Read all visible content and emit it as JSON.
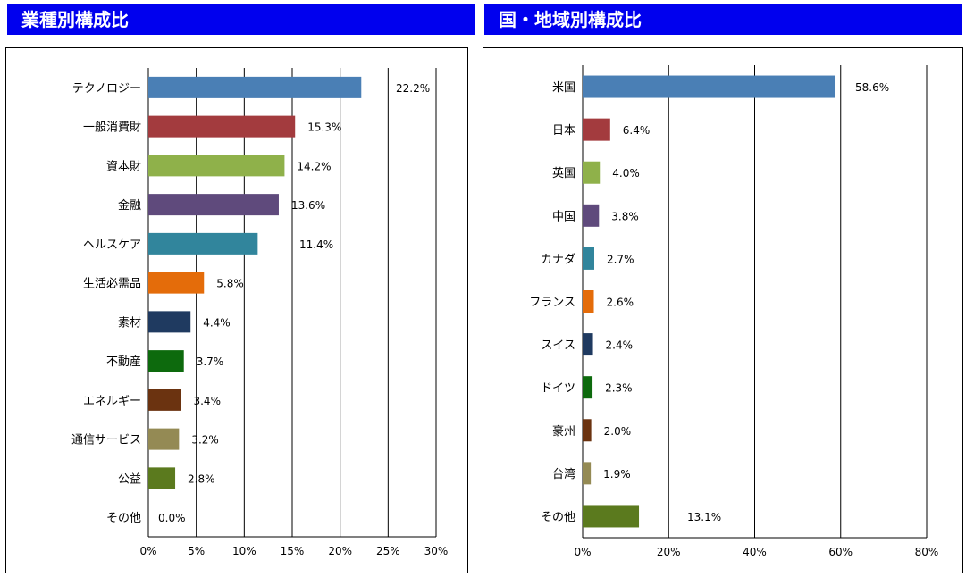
{
  "colors": {
    "header_bg": "#0000ee",
    "header_text": "#ffffff"
  },
  "chart_data": [
    {
      "type": "bar",
      "title": "業種別構成比",
      "orientation": "horizontal",
      "categories": [
        "テクノロジー",
        "一般消費財",
        "資本財",
        "金融",
        "ヘルスケア",
        "生活必需品",
        "素材",
        "不動産",
        "エネルギー",
        "通信サービス",
        "公益",
        "その他"
      ],
      "values": [
        22.2,
        15.3,
        14.2,
        13.6,
        11.4,
        5.8,
        4.4,
        3.7,
        3.4,
        3.2,
        2.8,
        0.0
      ],
      "value_labels": [
        "22.2%",
        "15.3%",
        "14.2%",
        "13.6%",
        "11.4%",
        "5.8%",
        "4.4%",
        "3.7%",
        "3.4%",
        "3.2%",
        "2.8%",
        "0.0%"
      ],
      "bar_colors": [
        "#4a7fb5",
        "#a33b3e",
        "#8fb14a",
        "#5f4a7c",
        "#31859c",
        "#e46c0a",
        "#1f3a60",
        "#0d6a0d",
        "#6b3310",
        "#948a54",
        "#5b7a1e",
        "#5b7a1e"
      ],
      "xlim": [
        0,
        30
      ],
      "xticks": [
        0,
        5,
        10,
        15,
        20,
        25,
        30
      ],
      "xtick_labels": [
        "0%",
        "5%",
        "10%",
        "15%",
        "20%",
        "25%",
        "30%"
      ],
      "xlabel": "",
      "ylabel": "",
      "grid": "vertical"
    },
    {
      "type": "bar",
      "title": "国・地域別構成比",
      "orientation": "horizontal",
      "categories": [
        "米国",
        "日本",
        "英国",
        "中国",
        "カナダ",
        "フランス",
        "スイス",
        "ドイツ",
        "豪州",
        "台湾",
        "その他"
      ],
      "values": [
        58.6,
        6.4,
        4.0,
        3.8,
        2.7,
        2.6,
        2.4,
        2.3,
        2.0,
        1.9,
        13.1
      ],
      "value_labels": [
        "58.6%",
        "6.4%",
        "4.0%",
        "3.8%",
        "2.7%",
        "2.6%",
        "2.4%",
        "2.3%",
        "2.0%",
        "1.9%",
        "13.1%"
      ],
      "bar_colors": [
        "#4a7fb5",
        "#a33b3e",
        "#8fb14a",
        "#5f4a7c",
        "#31859c",
        "#e46c0a",
        "#1f3a60",
        "#0d6a0d",
        "#6b3310",
        "#948a54",
        "#5b7a1e"
      ],
      "xlim": [
        0,
        80
      ],
      "xticks": [
        0,
        20,
        40,
        60,
        80
      ],
      "xtick_labels": [
        "0%",
        "20%",
        "40%",
        "60%",
        "80%"
      ],
      "xlabel": "",
      "ylabel": "",
      "grid": "vertical"
    }
  ]
}
